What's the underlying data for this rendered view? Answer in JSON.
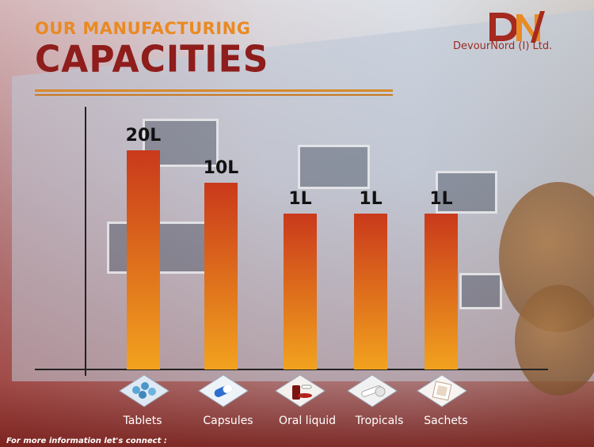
{
  "header": {
    "kicker": "OUR MANUFACTURING",
    "headline": "CAPACITIES"
  },
  "brand": {
    "name": "DevourNord (I) Ltd.",
    "logo_letters": "DN"
  },
  "footer": {
    "text": "For more information let's connect :"
  },
  "icons": [
    "tablets-icon",
    "capsules-icon",
    "oral-liquid-icon",
    "tropicals-icon",
    "sachets-icon"
  ],
  "colors": {
    "accent": "#e98a23",
    "brand": "#8e1d1b",
    "bar_top": "#c9391b",
    "bar_bottom": "#f2a21e"
  },
  "chart_data": {
    "type": "bar",
    "categories": [
      "Tablets",
      "Capsules",
      "Oral liquid",
      "Tropicals",
      "Sachets"
    ],
    "values": [
      20,
      10,
      1,
      1,
      1
    ],
    "data_labels": [
      "20L",
      "10L",
      "1L",
      "1L",
      "1L"
    ],
    "title": "CAPACITIES",
    "subtitle": "OUR MANUFACTURING",
    "unit": "L",
    "grid": false,
    "legend": "none"
  }
}
